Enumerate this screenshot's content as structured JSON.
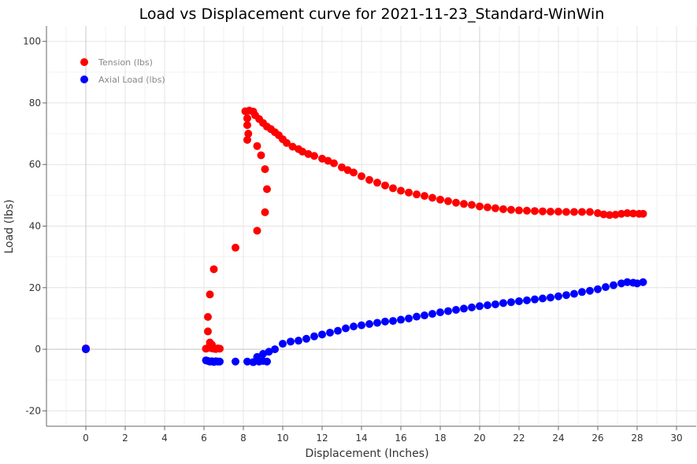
{
  "chart_data": {
    "type": "scatter",
    "title": "Load vs Displacement curve for 2021-11-23_Standard-WinWin",
    "xlabel": "Displacement (Inches)",
    "ylabel": "Load (lbs)",
    "xlim": [
      -2,
      31
    ],
    "ylim": [
      -25,
      105
    ],
    "xticks": [
      0,
      2,
      4,
      6,
      8,
      10,
      12,
      14,
      16,
      18,
      20,
      22,
      24,
      26,
      28,
      30
    ],
    "yticks": [
      -20,
      0,
      20,
      40,
      60,
      80,
      100
    ],
    "grid": true,
    "legend_position": "top-left",
    "series": [
      {
        "name": "Tension (lbs)",
        "color": "#ff0000",
        "points": [
          [
            0,
            0
          ],
          [
            0,
            0.3
          ],
          [
            6.1,
            0.2
          ],
          [
            6.2,
            0.4
          ],
          [
            6.3,
            1.0
          ],
          [
            6.2,
            5.8
          ],
          [
            6.2,
            10.5
          ],
          [
            6.3,
            17.8
          ],
          [
            6.5,
            26.0
          ],
          [
            6.4,
            0.3
          ],
          [
            6.5,
            0.2
          ],
          [
            6.6,
            0.1
          ],
          [
            6.7,
            0.3
          ],
          [
            6.8,
            0.2
          ],
          [
            6.3,
            2.2
          ],
          [
            6.4,
            1.5
          ],
          [
            7.6,
            33.0
          ],
          [
            8.7,
            38.5
          ],
          [
            9.1,
            44.5
          ],
          [
            9.2,
            52.0
          ],
          [
            9.1,
            58.5
          ],
          [
            8.9,
            63.0
          ],
          [
            8.7,
            66.0
          ],
          [
            8.2,
            68.0
          ],
          [
            8.25,
            70.0
          ],
          [
            8.2,
            72.8
          ],
          [
            8.2,
            75.0
          ],
          [
            8.1,
            77.3
          ],
          [
            8.3,
            77.5
          ],
          [
            8.5,
            77.2
          ],
          [
            8.6,
            76.0
          ],
          [
            8.8,
            74.8
          ],
          [
            9.0,
            73.5
          ],
          [
            9.2,
            72.3
          ],
          [
            9.4,
            71.5
          ],
          [
            9.6,
            70.5
          ],
          [
            9.8,
            69.5
          ],
          [
            10.0,
            68.2
          ],
          [
            10.2,
            67.0
          ],
          [
            10.5,
            65.8
          ],
          [
            10.8,
            65.0
          ],
          [
            11.0,
            64.2
          ],
          [
            11.3,
            63.4
          ],
          [
            11.6,
            62.8
          ],
          [
            12.0,
            61.9
          ],
          [
            12.3,
            61.2
          ],
          [
            12.6,
            60.4
          ],
          [
            13.0,
            59.1
          ],
          [
            13.3,
            58.2
          ],
          [
            13.6,
            57.4
          ],
          [
            14.0,
            56.2
          ],
          [
            14.4,
            55.0
          ],
          [
            14.8,
            54.1
          ],
          [
            15.2,
            53.2
          ],
          [
            15.6,
            52.3
          ],
          [
            16.0,
            51.5
          ],
          [
            16.4,
            50.9
          ],
          [
            16.8,
            50.3
          ],
          [
            17.2,
            49.8
          ],
          [
            17.6,
            49.2
          ],
          [
            18.0,
            48.6
          ],
          [
            18.4,
            48.1
          ],
          [
            18.8,
            47.6
          ],
          [
            19.2,
            47.2
          ],
          [
            19.6,
            46.9
          ],
          [
            20.0,
            46.4
          ],
          [
            20.4,
            46.1
          ],
          [
            20.8,
            45.8
          ],
          [
            21.2,
            45.5
          ],
          [
            21.6,
            45.3
          ],
          [
            22.0,
            45.1
          ],
          [
            22.4,
            45.0
          ],
          [
            22.8,
            44.9
          ],
          [
            23.2,
            44.8
          ],
          [
            23.6,
            44.7
          ],
          [
            24.0,
            44.7
          ],
          [
            24.4,
            44.6
          ],
          [
            24.8,
            44.6
          ],
          [
            25.2,
            44.6
          ],
          [
            25.6,
            44.6
          ],
          [
            26.0,
            44.2
          ],
          [
            26.3,
            43.8
          ],
          [
            26.6,
            43.6
          ],
          [
            26.9,
            43.7
          ],
          [
            27.2,
            44.0
          ],
          [
            27.5,
            44.2
          ],
          [
            27.8,
            44.1
          ],
          [
            28.1,
            44.0
          ],
          [
            28.3,
            44.0
          ]
        ]
      },
      {
        "name": "Axial Load (lbs)",
        "color": "#0000ff",
        "points": [
          [
            0,
            0
          ],
          [
            0,
            0.2
          ],
          [
            6.1,
            -3.6
          ],
          [
            6.2,
            -3.8
          ],
          [
            6.3,
            -4.0
          ],
          [
            6.4,
            -3.9
          ],
          [
            6.5,
            -4.1
          ],
          [
            6.6,
            -3.9
          ],
          [
            6.7,
            -4.0
          ],
          [
            6.8,
            -4.0
          ],
          [
            7.6,
            -4.0
          ],
          [
            8.2,
            -4.0
          ],
          [
            8.5,
            -4.2
          ],
          [
            8.8,
            -4.0
          ],
          [
            9.0,
            -3.8
          ],
          [
            9.2,
            -4.0
          ],
          [
            8.7,
            -2.5
          ],
          [
            9.0,
            -1.5
          ],
          [
            9.3,
            -0.8
          ],
          [
            9.6,
            0.0
          ],
          [
            10.0,
            1.8
          ],
          [
            10.4,
            2.5
          ],
          [
            10.8,
            2.8
          ],
          [
            11.2,
            3.4
          ],
          [
            11.6,
            4.2
          ],
          [
            12.0,
            4.8
          ],
          [
            12.4,
            5.4
          ],
          [
            12.8,
            6.0
          ],
          [
            13.2,
            6.8
          ],
          [
            13.6,
            7.4
          ],
          [
            14.0,
            7.8
          ],
          [
            14.4,
            8.2
          ],
          [
            14.8,
            8.6
          ],
          [
            15.2,
            9.0
          ],
          [
            15.6,
            9.2
          ],
          [
            16.0,
            9.6
          ],
          [
            16.4,
            10.0
          ],
          [
            16.8,
            10.6
          ],
          [
            17.2,
            11.0
          ],
          [
            17.6,
            11.5
          ],
          [
            18.0,
            12.0
          ],
          [
            18.4,
            12.4
          ],
          [
            18.8,
            12.8
          ],
          [
            19.2,
            13.2
          ],
          [
            19.6,
            13.6
          ],
          [
            20.0,
            14.0
          ],
          [
            20.4,
            14.3
          ],
          [
            20.8,
            14.6
          ],
          [
            21.2,
            15.0
          ],
          [
            21.6,
            15.3
          ],
          [
            22.0,
            15.6
          ],
          [
            22.4,
            15.9
          ],
          [
            22.8,
            16.2
          ],
          [
            23.2,
            16.5
          ],
          [
            23.6,
            16.8
          ],
          [
            24.0,
            17.2
          ],
          [
            24.4,
            17.6
          ],
          [
            24.8,
            18.0
          ],
          [
            25.2,
            18.6
          ],
          [
            25.6,
            19.0
          ],
          [
            26.0,
            19.5
          ],
          [
            26.4,
            20.2
          ],
          [
            26.8,
            20.8
          ],
          [
            27.2,
            21.4
          ],
          [
            27.5,
            21.8
          ],
          [
            27.8,
            21.6
          ],
          [
            28.0,
            21.4
          ],
          [
            28.3,
            21.8
          ]
        ]
      }
    ]
  }
}
